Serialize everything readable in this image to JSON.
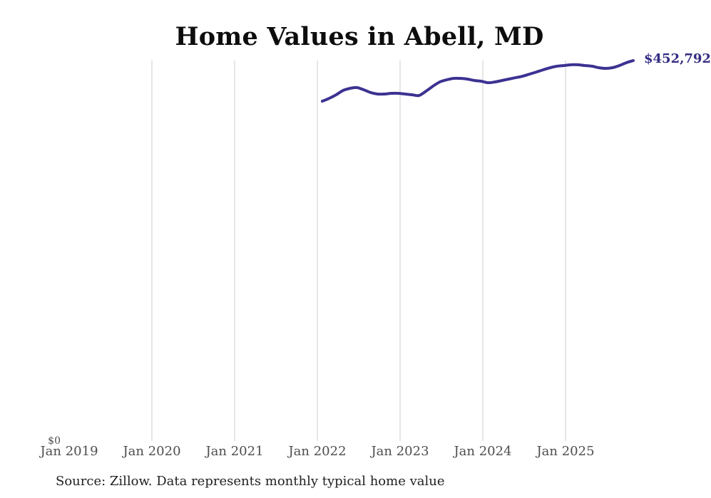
{
  "title": "Home Values in Abell, MD",
  "source_note": "Source: Zillow. Data represents monthly typical home value",
  "current_value_label": "$452,792",
  "y_zero_label": "$0",
  "colors": {
    "line": "#3b3292",
    "value_label": "#322c82",
    "gridline": "#cccccc",
    "tick_label": "#4d4d4d",
    "title": "#0d0d0d",
    "source": "#212121",
    "background": "#ffffff"
  },
  "chart_data": {
    "type": "line",
    "title": "Home Values in Abell, MD",
    "series_name": "Typical home value",
    "xlabel": "",
    "ylabel": "",
    "ylim": [
      0,
      452792
    ],
    "y_axis_min_label": "$0",
    "grid": "vertical-only",
    "legend": "none",
    "x_tick_labels": [
      "Jan 2019",
      "Jan 2020",
      "Jan 2021",
      "Jan 2022",
      "Jan 2023",
      "Jan 2024",
      "Jan 2025"
    ],
    "last_value": 452792,
    "last_value_label": "$452,792",
    "x": [
      "2022-02",
      "2022-03",
      "2022-04",
      "2022-05",
      "2022-06",
      "2022-07",
      "2022-08",
      "2022-09",
      "2022-10",
      "2022-11",
      "2022-12",
      "2023-01",
      "2023-02",
      "2023-03",
      "2023-04",
      "2023-05",
      "2023-06",
      "2023-07",
      "2023-08",
      "2023-09",
      "2023-10",
      "2023-11",
      "2023-12",
      "2024-01",
      "2024-02",
      "2024-03",
      "2024-04",
      "2024-05",
      "2024-06",
      "2024-07",
      "2024-08",
      "2024-09",
      "2024-10",
      "2024-11",
      "2024-12",
      "2025-01",
      "2025-02",
      "2025-03",
      "2025-04",
      "2025-05",
      "2025-06",
      "2025-07",
      "2025-08",
      "2025-09",
      "2025-10",
      "2025-11"
    ],
    "values": [
      404700,
      408100,
      412300,
      417400,
      419900,
      420800,
      418200,
      414900,
      413200,
      413200,
      414000,
      414000,
      413200,
      412300,
      411500,
      416500,
      422400,
      427500,
      430000,
      431700,
      431700,
      430900,
      429200,
      428300,
      426600,
      427500,
      429200,
      430900,
      432600,
      434300,
      436800,
      439300,
      441900,
      444400,
      446100,
      446900,
      447800,
      447800,
      446900,
      446100,
      444400,
      443500,
      444400,
      446900,
      450300,
      452792
    ]
  }
}
